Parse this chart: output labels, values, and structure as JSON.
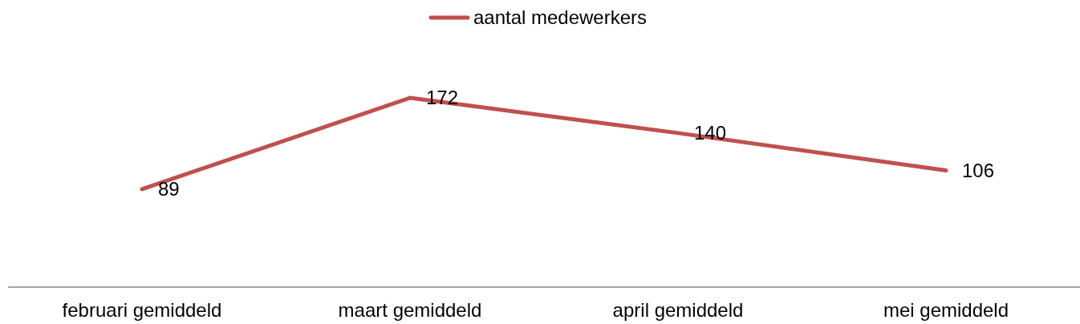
{
  "chart_data": {
    "type": "line",
    "categories": [
      "februari gemiddeld",
      "maart gemiddeld",
      "april gemiddeld",
      "mei gemiddeld"
    ],
    "series": [
      {
        "name": "aantal medewerkers",
        "color": "#c0504d",
        "values": [
          89,
          172,
          140,
          106
        ]
      }
    ],
    "data_labels": true,
    "legend": "top",
    "marker": "none"
  }
}
